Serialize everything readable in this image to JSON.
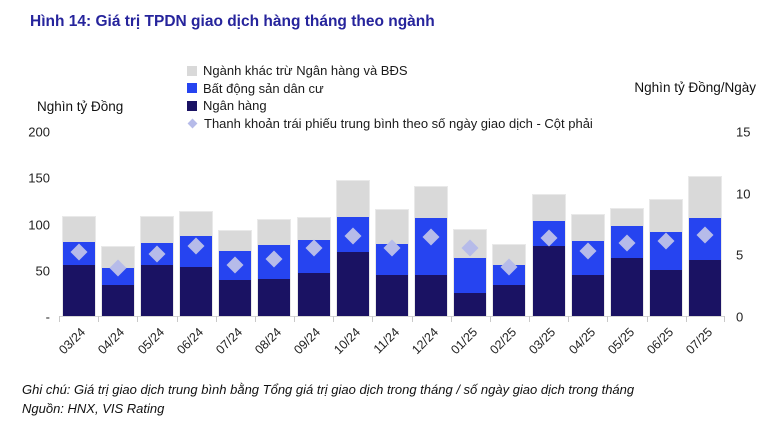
{
  "title": "Hình 14: Giá trị TPDN giao dịch hàng tháng theo ngành",
  "colors": {
    "title_text": "#26249c",
    "bank_navy": "#1a1263",
    "residential_re_blue": "#2644f0",
    "other_gray": "#d9d9d9",
    "liquidity_diamond": "#b6bbe9"
  },
  "legend": {
    "items": [
      {
        "label": "Ngành khác trừ Ngân hàng và BĐS",
        "marker": "square",
        "color": "#d9d9d9"
      },
      {
        "label": "Bất động sản dân cư",
        "marker": "square",
        "color": "#2644f0"
      },
      {
        "label": "Ngân hàng",
        "marker": "square",
        "color": "#1a1263"
      },
      {
        "label": "Thanh khoản trái phiếu trung bình theo số ngày giao dịch - Cột phải",
        "marker": "diamond",
        "color": "#b6bbe9"
      }
    ]
  },
  "axes": {
    "left_title": "Nghìn tỷ Đồng",
    "right_title": "Nghìn tỷ Đồng/Ngày",
    "left_tick_labels": [
      "200",
      "150",
      "100",
      "50",
      "-"
    ],
    "right_tick_labels": [
      "15",
      "10",
      "5",
      "0"
    ]
  },
  "footer": {
    "note": "Ghi chú: Giá trị giao dịch trung bình bằng Tổng giá trị giao dịch trong tháng / số ngày giao dịch trong tháng",
    "source": "Nguồn: HNX, VIS Rating"
  },
  "chart_data": {
    "type": "bar",
    "stacked": true,
    "title": "Giá trị TPDN giao dịch hàng tháng theo ngành",
    "categories": [
      "03/24",
      "04/24",
      "05/24",
      "06/24",
      "07/24",
      "08/24",
      "09/24",
      "10/24",
      "11/24",
      "12/24",
      "01/25",
      "02/25",
      "03/25",
      "04/25",
      "05/25",
      "06/25",
      "07/25"
    ],
    "series": [
      {
        "key": "ngan-hang",
        "name": "Ngân hàng",
        "color": "#1a1263",
        "values": [
          55,
          33,
          55,
          53,
          39,
          40,
          46,
          69,
          44,
          44,
          25,
          34,
          76,
          44,
          63,
          50,
          61
        ]
      },
      {
        "key": "bds-dan-cu",
        "name": "Bất động sản dân cư",
        "color": "#2644f0",
        "values": [
          25,
          19,
          24,
          34,
          31,
          37,
          36,
          38,
          34,
          62,
          38,
          21,
          27,
          37,
          34,
          41,
          45
        ]
      },
      {
        "key": "nganh-khac",
        "name": "Ngành khác trừ Ngân hàng và BĐS",
        "color": "#d9d9d9",
        "values": [
          27,
          23,
          28,
          25,
          22,
          27,
          24,
          39,
          37,
          33,
          30,
          22,
          28,
          28,
          19,
          34,
          44
        ]
      }
    ],
    "scatter": {
      "name": "Thanh khoản trái phiếu trung bình theo số ngày giao dịch - Cột phải",
      "axis": "right",
      "marker": "diamond",
      "color": "#b6bbe9",
      "values": [
        5.2,
        3.9,
        5.0,
        5.7,
        4.1,
        4.6,
        5.5,
        6.5,
        5.5,
        6.4,
        5.5,
        4.0,
        6.3,
        5.3,
        5.9,
        6.1,
        6.6
      ]
    },
    "left_axis": {
      "label": "Nghìn tỷ Đồng",
      "min": 0,
      "max": 200,
      "ticks": [
        0,
        50,
        100,
        150,
        200
      ]
    },
    "right_axis": {
      "label": "Nghìn tỷ Đồng/Ngày",
      "min": 0,
      "max": 15,
      "ticks": [
        0,
        5,
        10,
        15
      ]
    },
    "grid": false,
    "legend_position": "top-center",
    "x_label_rotation": -45
  }
}
